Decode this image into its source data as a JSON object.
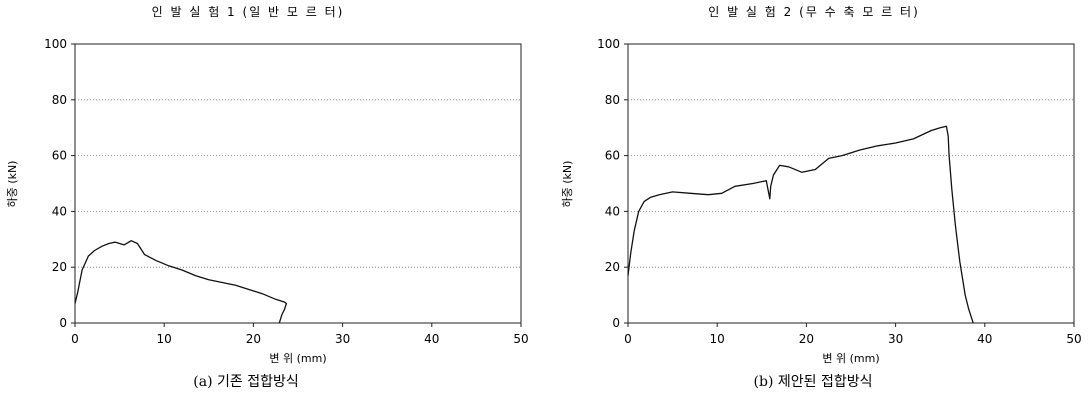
{
  "chart_data": [
    {
      "type": "line",
      "title": "인 발 실 험 1 (일 반 모 르 터)",
      "xlabel": "변 위 (mm)",
      "ylabel": "하중 (kN)",
      "caption": "(a) 기존 접합방식",
      "xlim": [
        0,
        50
      ],
      "ylim": [
        0,
        100
      ],
      "xticks": [
        "0",
        "10",
        "20",
        "30",
        "40",
        "50"
      ],
      "yticks": [
        "0",
        "20",
        "40",
        "60",
        "80",
        "100"
      ],
      "grid": "horizontal dotted",
      "series": [
        {
          "x": [
            0,
            0.3,
            0.8,
            1.5,
            2.2,
            3.0,
            3.8,
            4.5,
            5.5,
            6.3,
            7.0,
            7.8,
            9.0,
            10.5,
            12.0,
            13.5,
            15.0,
            16.5,
            18.0,
            19.5,
            21.0,
            22.5,
            23.5,
            23.7,
            23.5,
            23.2,
            23.0,
            22.9
          ],
          "y": [
            7,
            11,
            19,
            24,
            26,
            27.5,
            28.5,
            29,
            28,
            29.5,
            28.5,
            24.5,
            22.5,
            20.5,
            19,
            17,
            15.5,
            14.5,
            13.5,
            12,
            10.5,
            8.5,
            7.5,
            7,
            5,
            3,
            1,
            0
          ]
        }
      ]
    },
    {
      "type": "line",
      "title": "인 발 실 험 2 (무 수 축 모 르 터)",
      "xlabel": "변 위 (mm)",
      "ylabel": "하중 (kN)",
      "caption": "(b) 제안된 접합방식",
      "xlim": [
        0,
        50
      ],
      "ylim": [
        0,
        100
      ],
      "xticks": [
        "0",
        "10",
        "20",
        "30",
        "40",
        "50"
      ],
      "yticks": [
        "0",
        "20",
        "40",
        "60",
        "80",
        "100"
      ],
      "grid": "horizontal dotted",
      "series": [
        {
          "x": [
            0,
            0.3,
            0.7,
            1.2,
            1.8,
            2.5,
            3.5,
            5.0,
            7.0,
            9.0,
            10.5,
            12.0,
            14.0,
            15.5,
            15.9,
            16.0,
            16.3,
            17.0,
            18.0,
            19.5,
            21.0,
            22.5,
            24.0,
            26.0,
            28.0,
            30.0,
            32.0,
            34.0,
            35.0,
            35.7,
            35.9,
            36.0,
            36.3,
            36.7,
            37.2,
            37.8,
            38.2,
            38.5,
            38.7
          ],
          "y": [
            17,
            25,
            33,
            40,
            43.5,
            45,
            46,
            47,
            46.5,
            46,
            46.5,
            49,
            50,
            51,
            44.5,
            49,
            53,
            56.5,
            56,
            54,
            55,
            59,
            60,
            62,
            63.5,
            64.5,
            66,
            69,
            70,
            70.5,
            67,
            60,
            48,
            35,
            22,
            10,
            5,
            2,
            0
          ]
        }
      ]
    }
  ]
}
